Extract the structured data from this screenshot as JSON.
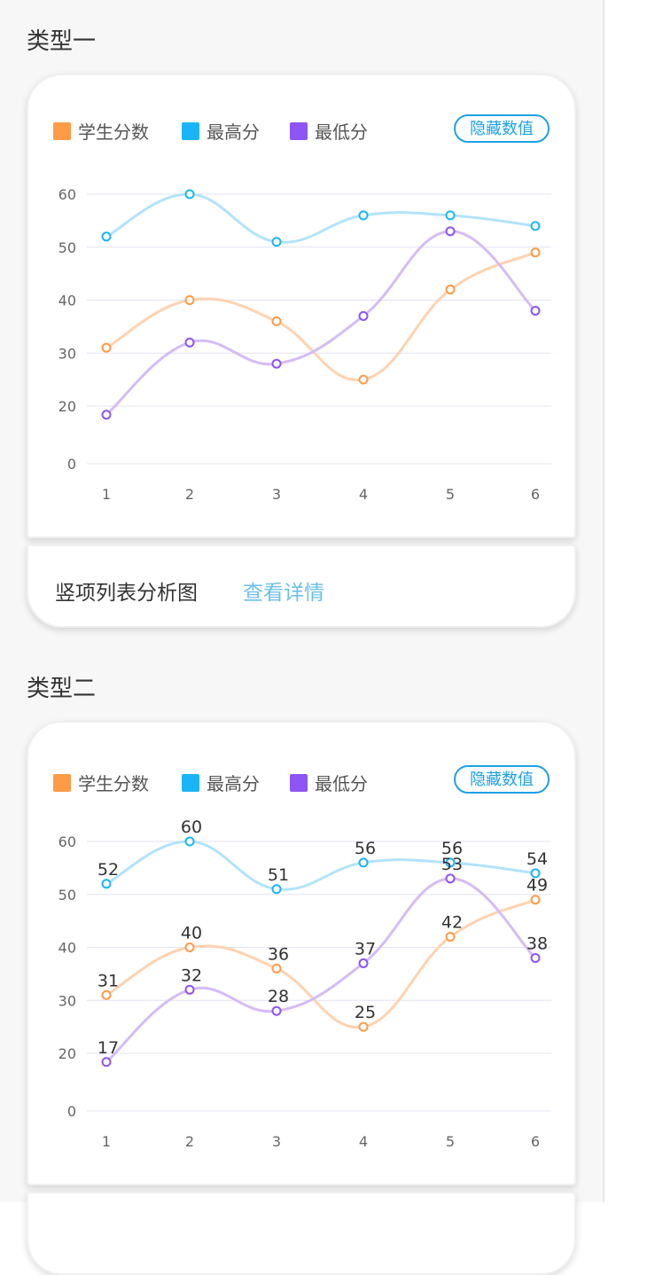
{
  "sections": [
    {
      "title": "类型一",
      "legend": [
        "学生分数",
        "最高分",
        "最低分"
      ],
      "hide_button": "隐藏数值",
      "show_values": false
    },
    {
      "title": "类型二",
      "legend": [
        "学生分数",
        "最高分",
        "最低分"
      ],
      "hide_button": "隐藏数值",
      "show_values": true
    }
  ],
  "detail": {
    "title": "竖项列表分析图",
    "link": "查看详情"
  },
  "colors": {
    "student": "#ff9a46",
    "max": "#1bb5f7",
    "min": "#8d55f5",
    "student_line": "#ffd2b0",
    "max_line": "#b2e3fb",
    "min_line": "#d4bcf7"
  },
  "chart_data": [
    {
      "type": "line",
      "categories": [
        "1",
        "2",
        "3",
        "4",
        "5",
        "6"
      ],
      "series": [
        {
          "name": "学生分数",
          "values": [
            31,
            40,
            36,
            25,
            42,
            49
          ]
        },
        {
          "name": "最高分",
          "values": [
            52,
            60,
            51,
            56,
            56,
            54
          ]
        },
        {
          "name": "最低分",
          "values": [
            17,
            32,
            28,
            37,
            53,
            38
          ]
        }
      ],
      "yticks": [
        0,
        20,
        30,
        40,
        50,
        60
      ],
      "grid": true,
      "legend": "top-left",
      "data_labels": false
    },
    {
      "type": "line",
      "categories": [
        "1",
        "2",
        "3",
        "4",
        "5",
        "6"
      ],
      "series": [
        {
          "name": "学生分数",
          "values": [
            31,
            40,
            36,
            25,
            42,
            49
          ]
        },
        {
          "name": "最高分",
          "values": [
            52,
            60,
            51,
            56,
            56,
            54
          ]
        },
        {
          "name": "最低分",
          "values": [
            17,
            32,
            28,
            37,
            53,
            38
          ]
        }
      ],
      "yticks": [
        0,
        20,
        30,
        40,
        50,
        60
      ],
      "grid": true,
      "legend": "top-left",
      "data_labels": true
    }
  ]
}
